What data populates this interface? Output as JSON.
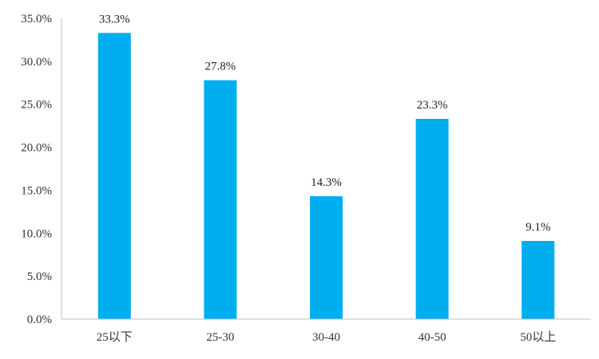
{
  "chart_data": {
    "type": "bar",
    "title": "",
    "xlabel": "",
    "ylabel": "",
    "categories": [
      "25以下",
      "25-30",
      "30-40",
      "40-50",
      "50以上"
    ],
    "values": [
      33.3,
      27.8,
      14.3,
      23.3,
      9.1
    ],
    "data_labels": [
      "33.3%",
      "27.8%",
      "14.3%",
      "23.3%",
      "9.1%"
    ],
    "yticks": [
      "0.0%",
      "5.0%",
      "10.0%",
      "15.0%",
      "20.0%",
      "25.0%",
      "30.0%",
      "35.0%"
    ],
    "ylim": [
      0,
      35
    ],
    "ytick_step": 5,
    "grid": false,
    "legend": "none",
    "bar_color": "#00AEEF",
    "axis_color": "#BFBFBF"
  }
}
